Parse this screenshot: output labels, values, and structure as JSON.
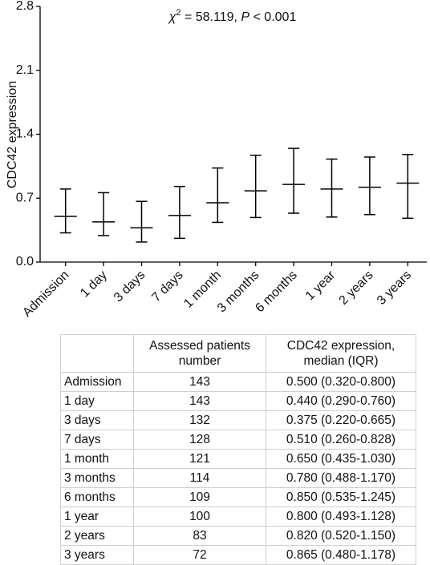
{
  "chart_data": {
    "type": "dot-plot",
    "annotation": {
      "chi": "χ",
      "sup": "2",
      "stat": " = 58.119, ",
      "p": "P",
      "rest": " < 0.001"
    },
    "ylabel": "CDC42 expression",
    "categories": [
      "Admission",
      "1 day",
      "3 days",
      "7 days",
      "1 month",
      "3 months",
      "6 months",
      "1 year",
      "2 years",
      "3 years"
    ],
    "median": [
      0.5,
      0.44,
      0.375,
      0.51,
      0.65,
      0.78,
      0.85,
      0.8,
      0.82,
      0.865
    ],
    "q1": [
      0.32,
      0.29,
      0.22,
      0.26,
      0.435,
      0.488,
      0.535,
      0.493,
      0.52,
      0.48
    ],
    "q3": [
      0.8,
      0.76,
      0.665,
      0.828,
      1.03,
      1.17,
      1.245,
      1.128,
      1.15,
      1.178
    ],
    "color": "#000000",
    "ylim": [
      0,
      2.8
    ],
    "yticks": [
      {
        "value": 0,
        "label": "0.0"
      },
      0.7,
      1.4,
      2.1,
      2.8
    ]
  },
  "table": {
    "header": [
      [
        "Assessed patients",
        "number"
      ],
      [
        "CDC42 expression,",
        "median (IQR)"
      ]
    ],
    "rows": [
      [
        "Admission",
        "143",
        "0.500 (0.320-0.800)"
      ],
      [
        "1 day",
        "143",
        "0.440 (0.290-0.760)"
      ],
      [
        "3 days",
        "132",
        "0.375 (0.220-0.665)"
      ],
      [
        "7 days",
        "128",
        "0.510 (0.260-0.828)"
      ],
      [
        "1 month",
        "121",
        "0.650 (0.435-1.030)"
      ],
      [
        "3 months",
        "114",
        "0.780 (0.488-1.170)"
      ],
      [
        "6 months",
        "109",
        "0.850 (0.535-1.245)"
      ],
      [
        "1 year",
        "100",
        "0.800 (0.493-1.128)"
      ],
      [
        "2 years",
        "83",
        "0.820 (0.520-1.150)"
      ],
      [
        "3 years",
        "72",
        "0.865 (0.480-1.178)"
      ]
    ]
  }
}
